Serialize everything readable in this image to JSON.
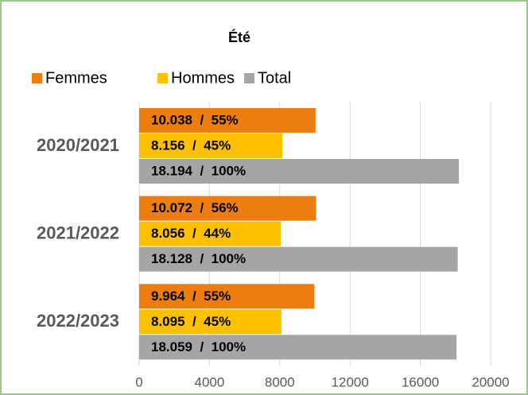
{
  "chart_data": {
    "type": "hbar",
    "title": "Été",
    "categories": [
      "2020/2021",
      "2021/2022",
      "2022/2023"
    ],
    "series": [
      {
        "name": "Femmes",
        "color": "#ed7d0e",
        "values": [
          10038,
          10072,
          9964
        ],
        "value_labels": [
          "10.038  /  55%",
          "10.072  /  56%",
          "9.964  /  55%"
        ]
      },
      {
        "name": "Hommes",
        "color": "#ffc000",
        "values": [
          8156,
          8056,
          8095
        ],
        "value_labels": [
          "8.156  /  45%",
          "8.056  /  44%",
          "8.095  /  45%"
        ]
      },
      {
        "name": "Total",
        "color": "#a5a5a5",
        "values": [
          18194,
          18128,
          18059
        ],
        "value_labels": [
          "18.194  /  100%",
          "18.128  /  100%",
          "18.059  /  100%"
        ]
      }
    ],
    "xlim": [
      0,
      20000
    ],
    "xticks": [
      0,
      4000,
      8000,
      12000,
      16000,
      20000
    ],
    "grid": true,
    "legend": "top"
  }
}
